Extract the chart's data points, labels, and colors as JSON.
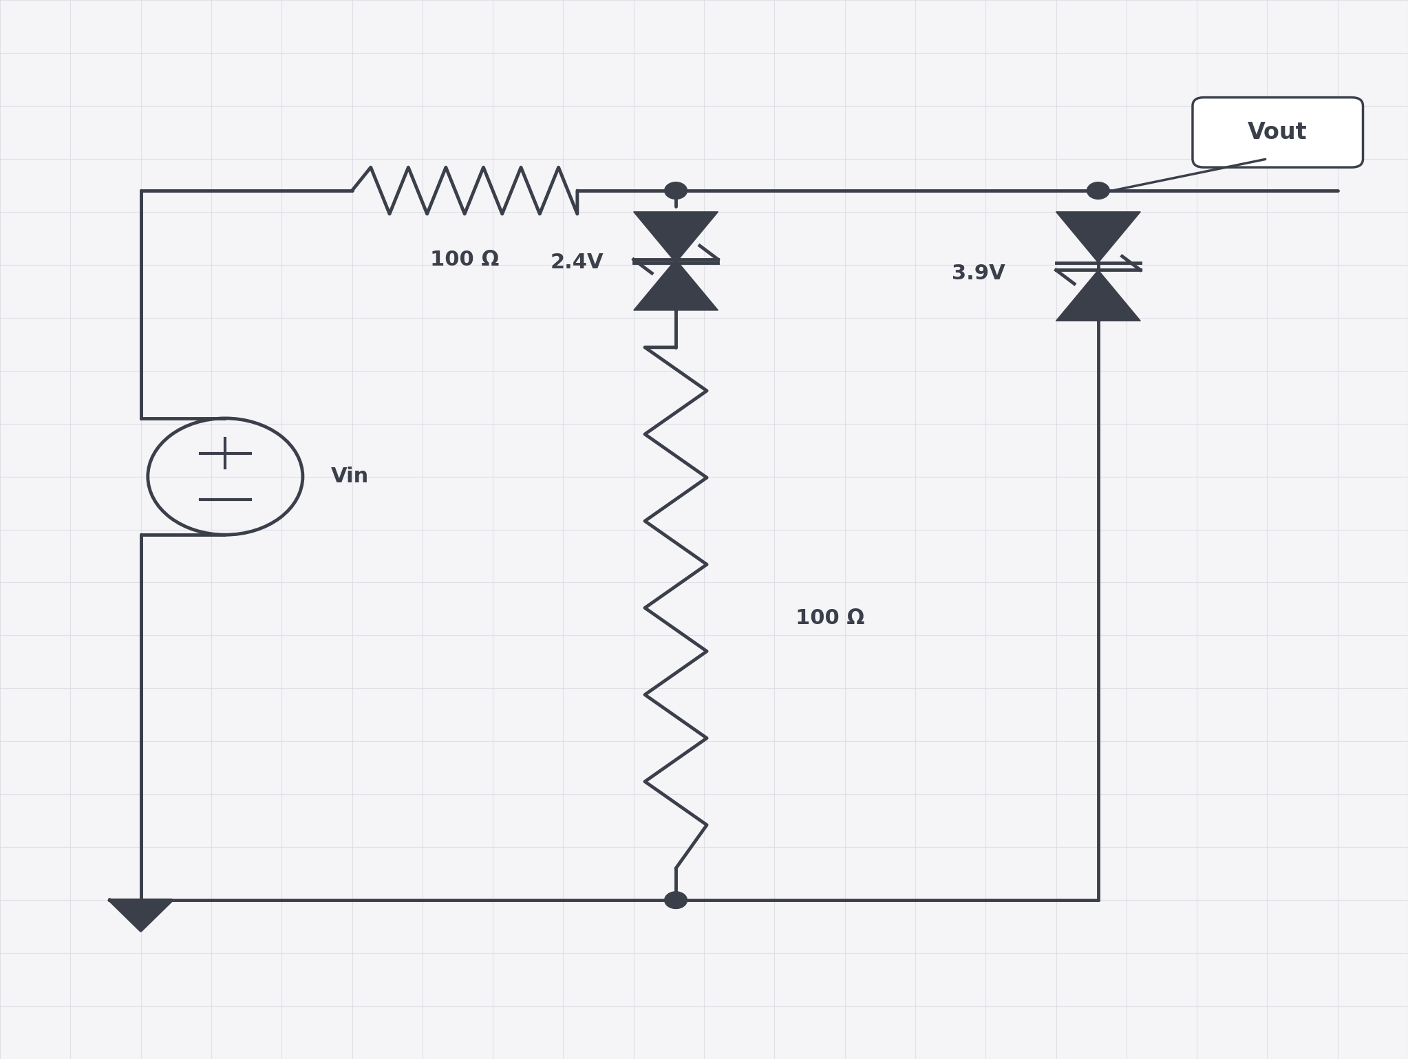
{
  "bg_color": "#f5f5f8",
  "line_color": "#3a3f4a",
  "line_width": 3.5,
  "grid_color": "#d8d8e0",
  "grid_alpha": 0.7,
  "component_color": "#3a3f4a",
  "dot_color": "#3a3f4a",
  "resistor1_label": "100 Ω",
  "resistor2_label": "100 Ω",
  "diode1_label": "2.4V",
  "diode2_label": "3.9V",
  "source_label": "Vin",
  "vout_label": "Vout"
}
